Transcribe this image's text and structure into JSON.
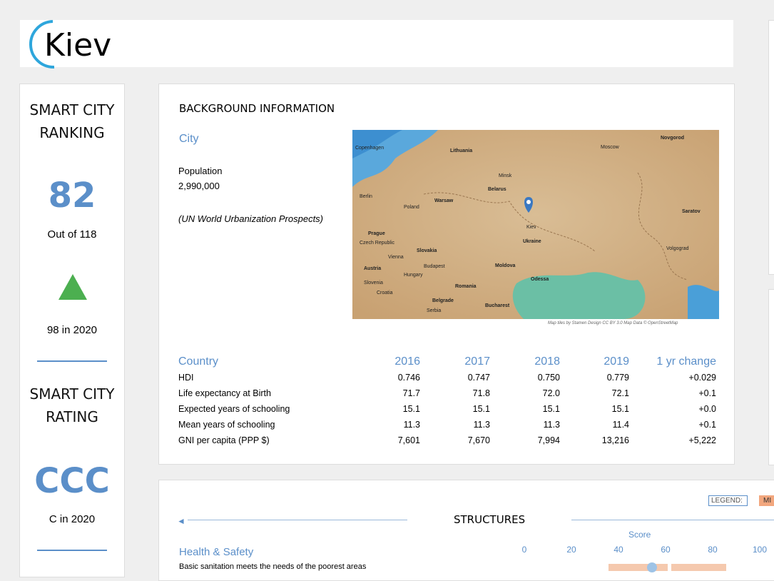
{
  "header": {
    "title": "Kiev"
  },
  "ranking": {
    "heading": "SMART CITY RANKING",
    "rank": "82",
    "out_of": "Out of 118",
    "previous": "98 in 2020"
  },
  "rating": {
    "heading": "SMART CITY RATING",
    "grade": "CCC",
    "previous": "C in 2020"
  },
  "background": {
    "title": "BACKGROUND INFORMATION",
    "city_heading": "City",
    "population_label": "Population",
    "population": "2,990,000",
    "source": "(UN World Urbanization Prospects)"
  },
  "map": {
    "labels": [
      "Copenhagen",
      "Lithuania",
      "Moscow",
      "Novgorod",
      "Minsk",
      "Belarus",
      "Berlin",
      "Warsaw",
      "Poland",
      "Saratov",
      "Kiev",
      "Prague",
      "Czech Republic",
      "Ukraine",
      "Volgograd",
      "Slovakia",
      "Vienna",
      "Austria",
      "Budapest",
      "Moldova",
      "Hungary",
      "Odessa",
      "Slovenia",
      "Romania",
      "Croatia",
      "Belgrade",
      "Serbia",
      "Bucharest"
    ],
    "credit": "Map tiles by Stamen Design CC BY 3.0 Map Data © OpenStreetMap"
  },
  "table": {
    "header": [
      "Country",
      "2016",
      "2017",
      "2018",
      "2019",
      "1 yr change"
    ],
    "rows": [
      [
        "HDI",
        "0.746",
        "0.747",
        "0.750",
        "0.779",
        "+0.029"
      ],
      [
        "Life expectancy at Birth",
        "71.7",
        "71.8",
        "72.0",
        "72.1",
        "+0.1"
      ],
      [
        "Expected years of schooling",
        "15.1",
        "15.1",
        "15.1",
        "15.1",
        "+0.0"
      ],
      [
        "Mean years of schooling",
        "11.3",
        "11.3",
        "11.3",
        "11.4",
        "+0.1"
      ],
      [
        "GNI per capita (PPP $)",
        "7,601",
        "7,670",
        "7,994",
        "13,216",
        "+5,222"
      ]
    ]
  },
  "structures": {
    "title": "STRUCTURES",
    "legend_label": "LEGEND:",
    "legend_item": "MI",
    "score_label": "Score",
    "score_ticks": [
      "0",
      "20",
      "40",
      "60",
      "80",
      "100"
    ],
    "section": "Health & Safety",
    "item": "Basic sanitation meets the needs of the poorest areas"
  }
}
